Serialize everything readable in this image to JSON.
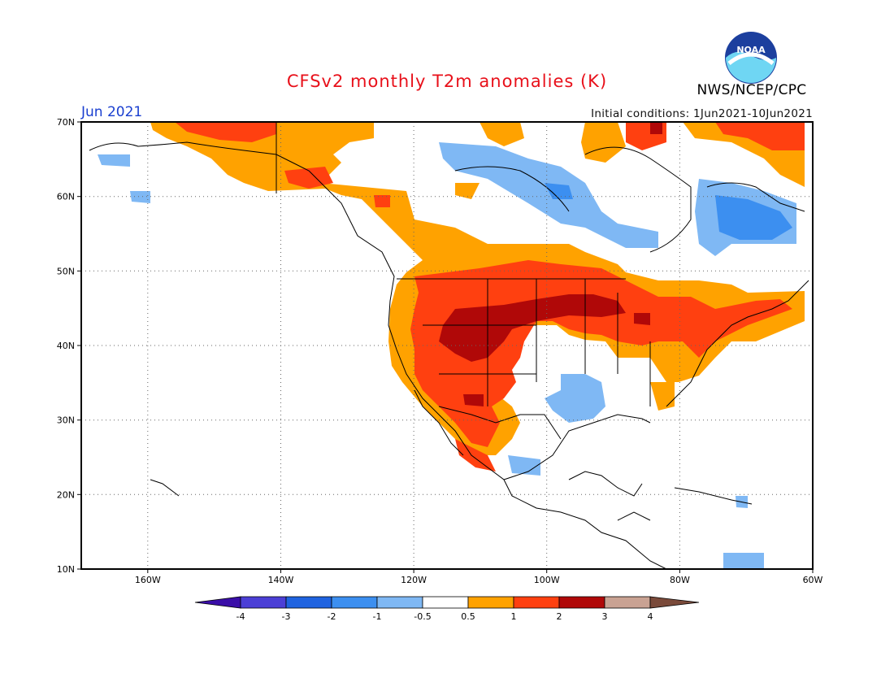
{
  "header": {
    "title": "CFSv2 monthly T2m anomalies (K)",
    "month": "Jun 2021",
    "initial_conditions": "Initial conditions: 1Jun2021-10Jun2021",
    "agency": "NWS/NCEP/CPC",
    "logo_text": "NOAA"
  },
  "map": {
    "region": "North America",
    "lon_range": [
      -170,
      -60
    ],
    "lat_range": [
      10,
      70
    ],
    "lat_labels": [
      "70N",
      "60N",
      "50N",
      "40N",
      "30N",
      "20N",
      "10N"
    ],
    "lon_labels": [
      "160W",
      "140W",
      "120W",
      "100W",
      "80W",
      "60W"
    ],
    "grid": "dotted"
  },
  "colorbar": {
    "tick_labels": [
      "-4",
      "-3",
      "-2",
      "-1",
      "-0.5",
      "0.5",
      "1",
      "2",
      "3",
      "4"
    ],
    "colors": [
      "#3a0ea8",
      "#4b3fd6",
      "#1f63e0",
      "#3c8ff0",
      "#7fb8f4",
      "#ffffff",
      "#ffa200",
      "#ff4010",
      "#b00808",
      "#c9a293",
      "#7a4a3a"
    ]
  }
}
